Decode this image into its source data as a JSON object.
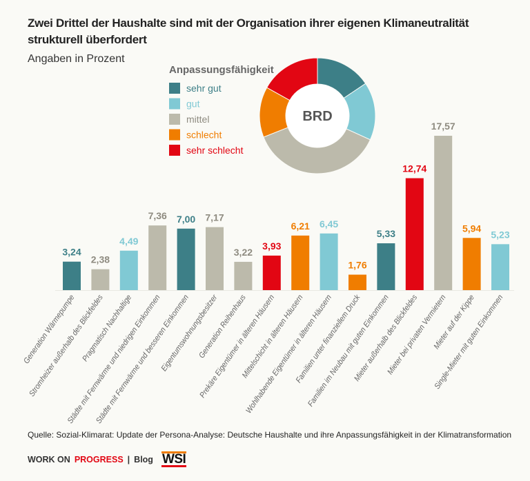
{
  "header": {
    "title_line1": "Zwei Drittel der Haushalte sind mit der Organisation ihrer eigenen Klimaneutralität",
    "title_line2": "strukturell überfordert",
    "subtitle": "Angaben in Prozent"
  },
  "colors": {
    "sehr gut": "#3d7f87",
    "gut": "#80c9d4",
    "mittel": "#bcbaab",
    "schlecht": "#f07d00",
    "sehr schlecht": "#e20613"
  },
  "label_colors": {
    "sehr gut": "#3d7f87",
    "gut": "#80c9d4",
    "mittel": "#8e8b80",
    "schlecht": "#f07d00",
    "sehr schlecht": "#e20613"
  },
  "chart_data": [
    {
      "type": "pie",
      "title": "Anpassungsfähigkeit",
      "center_label": "BRD",
      "legend": [
        "sehr gut",
        "gut",
        "mittel",
        "schlecht",
        "sehr schlecht"
      ],
      "values": [
        15.6,
        16.2,
        37.2,
        14.1,
        16.9
      ],
      "legend_placement": "left"
    },
    {
      "type": "bar",
      "categories": [
        "Generation Wärmepumpe",
        "Stromheizer außerhalb des Blickfeldes",
        "Pragmatisch Nachhaltige",
        "Städte mit Fernwärme und niedrigen Einkommen",
        "Städte mit Fernwärme und besseren Einkommen",
        "Eigentumswohnungsbesitzer",
        "Generation Reihenhaus",
        "Prekäre Eigentümer in älteren Häusern",
        "Mittelschicht in älteren Häusern",
        "Wohlhabende Eigentümer in älteren Häusern",
        "Familien unter finanziellem Druck",
        "Familien im Neubau mit guten Einkommen",
        "Mieter außerhalb des Blickfeldes",
        "Mieter bei privaten Vermietern",
        "Mieter auf der Kippe",
        "Single-Mieter mit guten Einkommen"
      ],
      "values": [
        3.24,
        2.38,
        4.49,
        7.36,
        7.0,
        7.17,
        3.22,
        3.93,
        6.21,
        6.45,
        1.76,
        5.33,
        12.74,
        17.57,
        5.94,
        5.23
      ],
      "value_labels": [
        "3,24",
        "2,38",
        "4,49",
        "7,36",
        "7,00",
        "7,17",
        "3,22",
        "3,93",
        "6,21",
        "6,45",
        "1,76",
        "5,33",
        "12,74",
        "17,57",
        "5,94",
        "5,23"
      ],
      "group": [
        "sehr gut",
        "mittel",
        "gut",
        "mittel",
        "sehr gut",
        "mittel",
        "mittel",
        "sehr schlecht",
        "schlecht",
        "gut",
        "schlecht",
        "sehr gut",
        "sehr schlecht",
        "mittel",
        "schlecht",
        "gut"
      ],
      "ylim": [
        0,
        17.57
      ],
      "grid": false
    }
  ],
  "footer": {
    "source": "Quelle: Sozial-Klimarat: Update der Persona-Analyse: Deutsche Haushalte und ihre Anpassungsfähigkeit in der Klimatransformation",
    "brand_1": "WORK ON",
    "brand_2": "PROGRESS",
    "separator": "|",
    "blog": "Blog",
    "logo": "WSI"
  }
}
